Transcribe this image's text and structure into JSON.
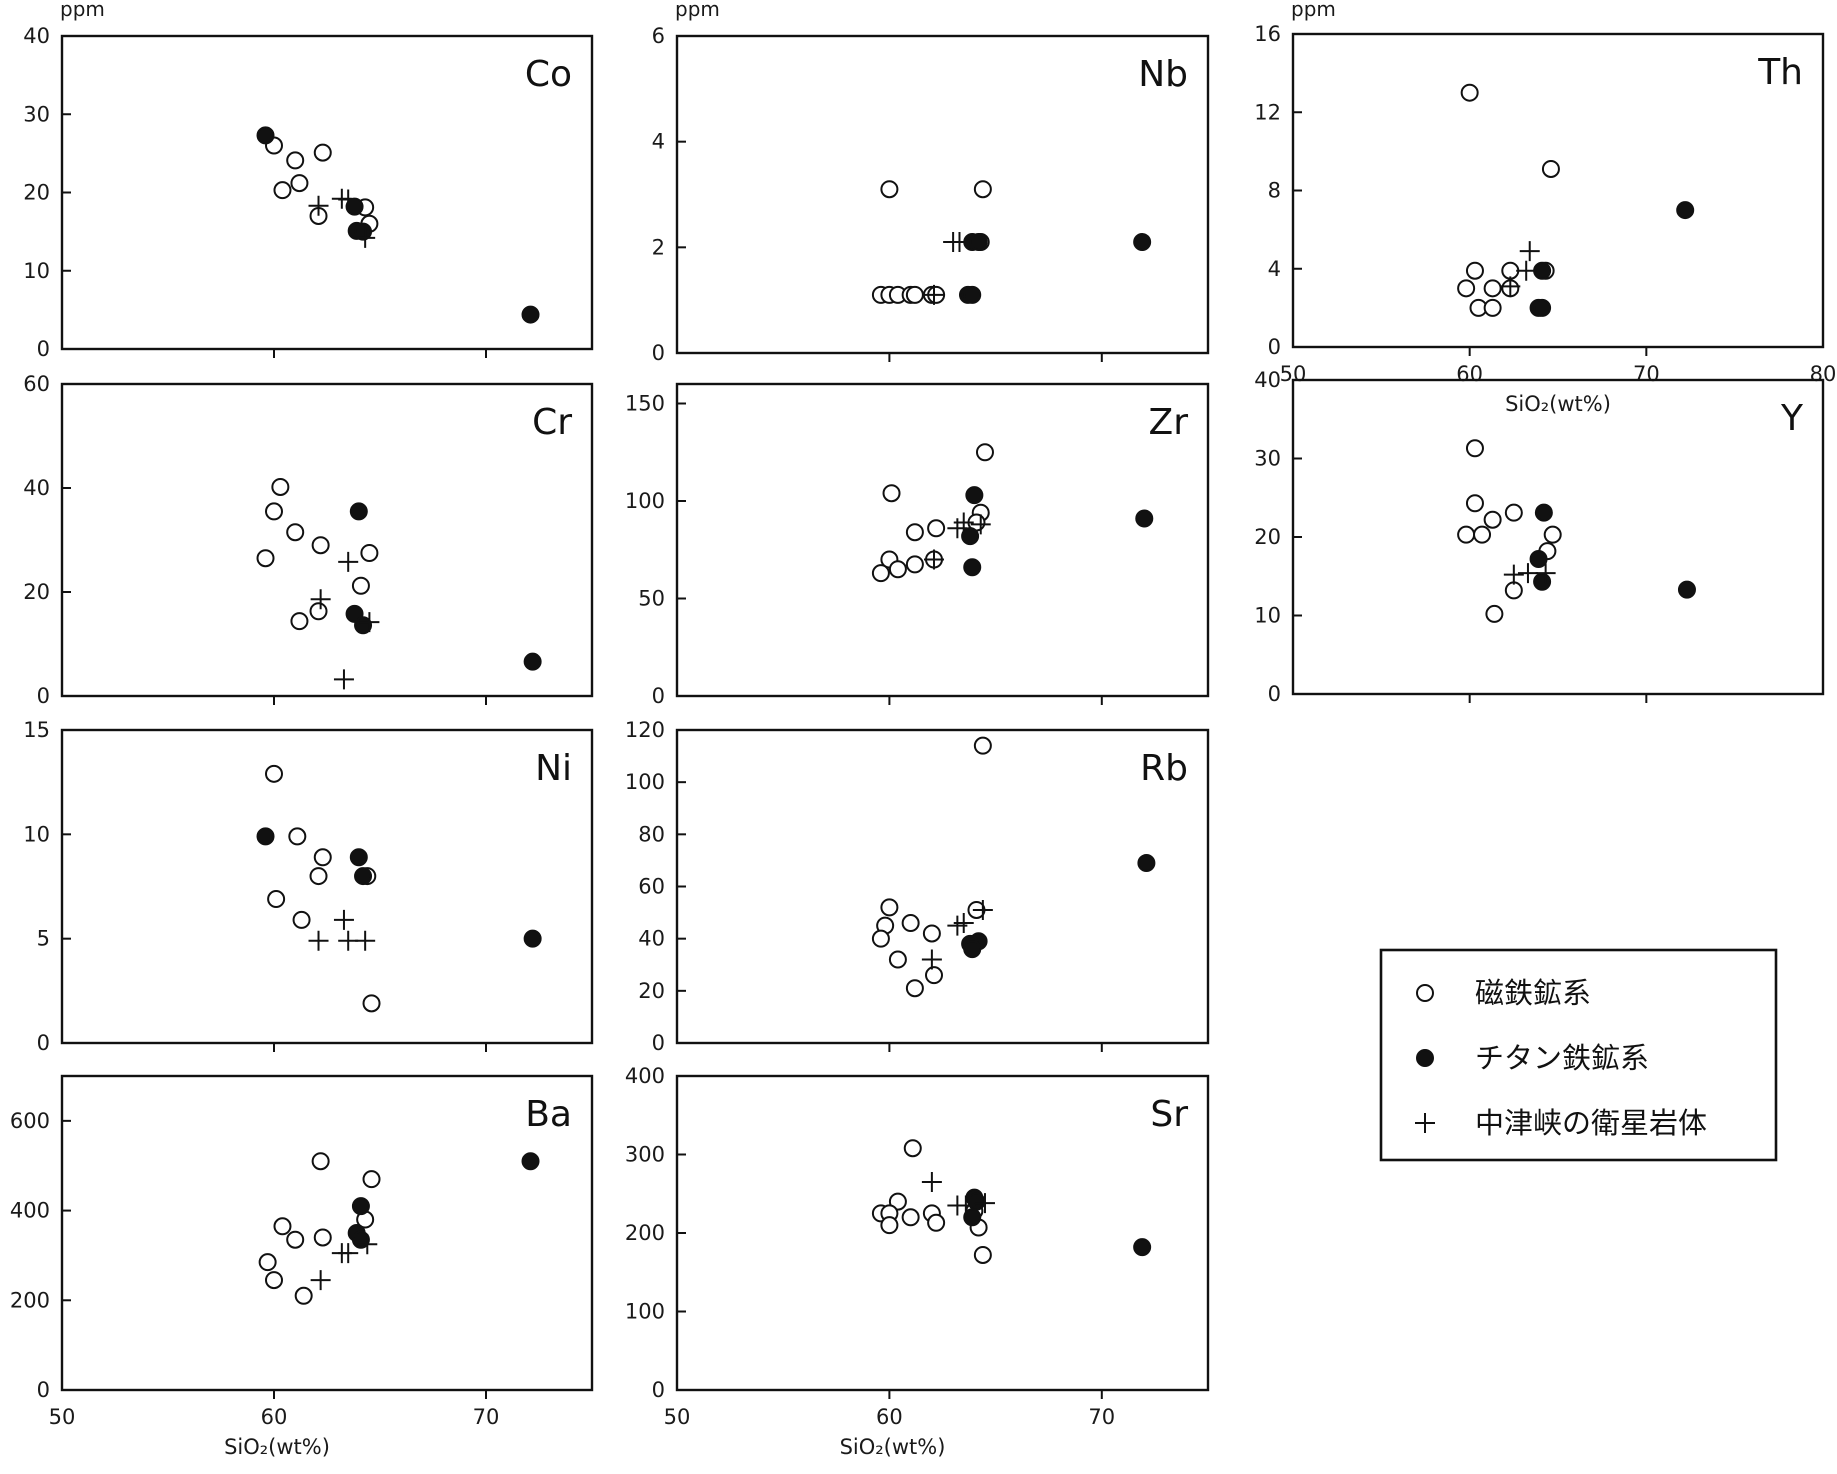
{
  "chart_data": [
    {
      "type": "scatter",
      "element": "Co",
      "unit": "ppm",
      "xlabel": "",
      "ylim": [
        0,
        40
      ],
      "yticks": [
        0,
        10,
        20,
        30,
        40
      ],
      "xlim": [
        50,
        75
      ],
      "xticks": [
        60,
        70
      ],
      "xtick_labels": [],
      "series": [
        {
          "name": "磁鉄鉱系",
          "points": [
            [
              60,
              26
            ],
            [
              60.4,
              20.3
            ],
            [
              61,
              24.1
            ],
            [
              61.2,
              21.2
            ],
            [
              62.1,
              17
            ],
            [
              62.3,
              25.1
            ],
            [
              64.3,
              18.1
            ],
            [
              64.5,
              16
            ]
          ]
        },
        {
          "name": "チタン鉄鉱系",
          "points": [
            [
              59.6,
              27.3
            ],
            [
              63.8,
              18.2
            ],
            [
              63.9,
              15.1
            ],
            [
              64.2,
              15
            ],
            [
              72.1,
              4.4
            ]
          ]
        },
        {
          "name": "中津峡の衛星岩体",
          "points": [
            [
              62.1,
              18.3
            ],
            [
              63.2,
              19.2
            ],
            [
              63.5,
              19.1
            ],
            [
              64.3,
              14.2
            ]
          ]
        }
      ]
    },
    {
      "type": "scatter",
      "element": "Nb",
      "unit": "ppm",
      "xlabel": "",
      "ylim": [
        0,
        6
      ],
      "yticks": [
        0,
        2,
        4,
        6
      ],
      "xlim": [
        50,
        75
      ],
      "xticks": [
        60,
        70
      ],
      "xtick_labels": [],
      "series": [
        {
          "name": "磁鉄鉱系",
          "points": [
            [
              59.6,
              1.1
            ],
            [
              60,
              1.1
            ],
            [
              60.4,
              1.1
            ],
            [
              61,
              1.1
            ],
            [
              61.2,
              1.1
            ],
            [
              62,
              1.1
            ],
            [
              62.2,
              1.1
            ],
            [
              60,
              3.1
            ],
            [
              64.4,
              3.1
            ],
            [
              64.3,
              2.1
            ]
          ]
        },
        {
          "name": "チタン鉄鉱系",
          "points": [
            [
              63.7,
              1.1
            ],
            [
              63.9,
              1.1
            ],
            [
              63.9,
              2.1
            ],
            [
              64.2,
              2.1
            ],
            [
              71.9,
              2.1
            ]
          ]
        },
        {
          "name": "中津峡の衛星岩体",
          "points": [
            [
              62.1,
              1.1
            ],
            [
              63,
              2.1
            ],
            [
              63.3,
              2.1
            ]
          ]
        }
      ]
    },
    {
      "type": "scatter",
      "element": "Th",
      "unit": "ppm",
      "xlabel": "SiO₂(wt%)",
      "ylim": [
        0,
        16
      ],
      "yticks": [
        0,
        4,
        8,
        12,
        16
      ],
      "ytick_labels": [
        "0",
        "4",
        "8",
        "12",
        "16"
      ],
      "xlim": [
        50,
        80
      ],
      "xticks": [
        50,
        60,
        70,
        80
      ],
      "xtick_labels": [
        "50",
        "60",
        "70",
        "80"
      ],
      "series": [
        {
          "name": "磁鉄鉱系",
          "points": [
            [
              60,
              13
            ],
            [
              64.6,
              9.1
            ],
            [
              60.3,
              3.9
            ],
            [
              59.8,
              3
            ],
            [
              61.3,
              3
            ],
            [
              60.5,
              2
            ],
            [
              61.3,
              2
            ],
            [
              62.3,
              3.9
            ],
            [
              62.3,
              3
            ],
            [
              64.3,
              3.9
            ]
          ]
        },
        {
          "name": "チタン鉄鉱系",
          "points": [
            [
              72.2,
              7
            ],
            [
              64.1,
              3.9
            ],
            [
              63.9,
              2
            ],
            [
              64.1,
              2
            ]
          ]
        },
        {
          "name": "中津峡の衛星岩体",
          "points": [
            [
              63.4,
              4.9
            ],
            [
              63.2,
              3.9
            ],
            [
              62.3,
              3.1
            ]
          ]
        }
      ]
    },
    {
      "type": "scatter",
      "element": "Cr",
      "unit": "",
      "xlabel": "",
      "ylim": [
        0,
        60
      ],
      "yticks": [
        0,
        20,
        40,
        60
      ],
      "xlim": [
        50,
        75
      ],
      "xticks": [
        60,
        70
      ],
      "xtick_labels": [],
      "series": [
        {
          "name": "磁鉄鉱系",
          "points": [
            [
              60.3,
              40.2
            ],
            [
              60,
              35.5
            ],
            [
              61,
              31.5
            ],
            [
              62.2,
              29
            ],
            [
              59.6,
              26.5
            ],
            [
              64.5,
              27.5
            ],
            [
              64.1,
              21.2
            ],
            [
              62.1,
              16.3
            ],
            [
              61.2,
              14.4
            ]
          ]
        },
        {
          "name": "チタン鉄鉱系",
          "points": [
            [
              64,
              35.5
            ],
            [
              63.8,
              15.8
            ],
            [
              64.2,
              13.6
            ],
            [
              72.2,
              6.6
            ]
          ]
        },
        {
          "name": "中津峡の衛星岩体",
          "points": [
            [
              63.5,
              25.8
            ],
            [
              62.2,
              18.6
            ],
            [
              64.5,
              14.2
            ],
            [
              63.3,
              3.2
            ]
          ]
        }
      ]
    },
    {
      "type": "scatter",
      "element": "Zr",
      "unit": "",
      "xlabel": "",
      "ylim": [
        0,
        160
      ],
      "yticks": [
        0,
        50,
        100,
        150
      ],
      "xlim": [
        50,
        75
      ],
      "xticks": [
        60,
        70
      ],
      "xtick_labels": [],
      "series": [
        {
          "name": "磁鉄鉱系",
          "points": [
            [
              64.5,
              125
            ],
            [
              60.1,
              104
            ],
            [
              64.3,
              94
            ],
            [
              62.2,
              86
            ],
            [
              61.2,
              84
            ],
            [
              60,
              70
            ],
            [
              61.2,
              67.5
            ],
            [
              60.4,
              65
            ],
            [
              59.6,
              63
            ],
            [
              62.1,
              70
            ],
            [
              64.1,
              89
            ]
          ]
        },
        {
          "name": "チタン鉄鉱系",
          "points": [
            [
              64,
              103
            ],
            [
              63.8,
              82
            ],
            [
              63.9,
              66
            ],
            [
              72,
              91
            ]
          ]
        },
        {
          "name": "中津峡の衛星岩体",
          "points": [
            [
              63.2,
              86
            ],
            [
              63.5,
              89
            ],
            [
              64.3,
              88
            ],
            [
              62.1,
              70
            ]
          ]
        }
      ]
    },
    {
      "type": "scatter",
      "element": "Y",
      "unit": "",
      "xlabel": "",
      "ylim": [
        0,
        40
      ],
      "yticks": [
        0,
        10,
        20,
        30,
        40
      ],
      "xlim": [
        50,
        80
      ],
      "xticks": [
        50,
        60,
        70,
        80
      ],
      "xtick_labels": [],
      "series": [
        {
          "name": "磁鉄鉱系",
          "points": [
            [
              60.3,
              31.3
            ],
            [
              60.3,
              24.3
            ],
            [
              61.3,
              22.2
            ],
            [
              62.5,
              23.1
            ],
            [
              59.8,
              20.3
            ],
            [
              60.7,
              20.3
            ],
            [
              64.7,
              20.3
            ],
            [
              64.4,
              18.2
            ],
            [
              62.5,
              13.2
            ],
            [
              61.4,
              10.2
            ]
          ]
        },
        {
          "name": "チタン鉄鉱系",
          "points": [
            [
              64.2,
              23.1
            ],
            [
              63.9,
              17.2
            ],
            [
              64.1,
              14.3
            ],
            [
              72.3,
              13.3
            ]
          ]
        },
        {
          "name": "中津峡の衛星岩体",
          "points": [
            [
              62.5,
              15.2
            ],
            [
              63.3,
              15.4
            ],
            [
              64.3,
              15.4
            ]
          ]
        }
      ]
    },
    {
      "type": "scatter",
      "element": "Ni",
      "unit": "",
      "xlabel": "",
      "ylim": [
        0,
        15
      ],
      "yticks": [
        0,
        5,
        10,
        15
      ],
      "xlim": [
        50,
        75
      ],
      "xticks": [
        60,
        70
      ],
      "xtick_labels": [],
      "series": [
        {
          "name": "磁鉄鉱系",
          "points": [
            [
              60,
              12.9
            ],
            [
              61.1,
              9.9
            ],
            [
              62.3,
              8.9
            ],
            [
              62.1,
              8
            ],
            [
              64.4,
              8
            ],
            [
              60.1,
              6.9
            ],
            [
              61.3,
              5.9
            ],
            [
              64.6,
              1.9
            ]
          ]
        },
        {
          "name": "チタン鉄鉱系",
          "points": [
            [
              59.6,
              9.9
            ],
            [
              64,
              8.9
            ],
            [
              64.2,
              8
            ],
            [
              72.2,
              5
            ]
          ]
        },
        {
          "name": "中津峡の衛星岩体",
          "points": [
            [
              63.3,
              5.9
            ],
            [
              62.1,
              4.9
            ],
            [
              63.5,
              4.9
            ],
            [
              64.3,
              4.9
            ]
          ]
        }
      ]
    },
    {
      "type": "scatter",
      "element": "Rb",
      "unit": "",
      "xlabel": "",
      "ylim": [
        0,
        120
      ],
      "yticks": [
        0,
        20,
        40,
        60,
        80,
        100,
        120
      ],
      "xlim": [
        50,
        75
      ],
      "xticks": [
        60,
        70
      ],
      "xtick_labels": [],
      "series": [
        {
          "name": "磁鉄鉱系",
          "points": [
            [
              64.4,
              114
            ],
            [
              60,
              52
            ],
            [
              61,
              46
            ],
            [
              59.8,
              45
            ],
            [
              59.6,
              40
            ],
            [
              62,
              42
            ],
            [
              60.4,
              32
            ],
            [
              62.1,
              26
            ],
            [
              61.2,
              21
            ],
            [
              64.1,
              51
            ]
          ]
        },
        {
          "name": "チタン鉄鉱系",
          "points": [
            [
              72.1,
              69
            ],
            [
              64.2,
              39
            ],
            [
              63.8,
              38
            ],
            [
              63.9,
              36
            ]
          ]
        },
        {
          "name": "中津峡の衛星岩体",
          "points": [
            [
              63.2,
              45
            ],
            [
              63.5,
              46
            ],
            [
              64.4,
              51
            ],
            [
              62,
              32
            ]
          ]
        }
      ]
    },
    {
      "type": "scatter",
      "element": "Ba",
      "unit": "",
      "xlabel": "SiO₂(wt%)",
      "ylim": [
        0,
        700
      ],
      "yticks": [
        0,
        200,
        400,
        600
      ],
      "xlim": [
        50,
        75
      ],
      "xticks": [
        50,
        60,
        70
      ],
      "xtick_labels": [
        "50",
        "60",
        "70"
      ],
      "series": [
        {
          "name": "磁鉄鉱系",
          "points": [
            [
              62.2,
              510
            ],
            [
              64.6,
              470
            ],
            [
              64.3,
              380
            ],
            [
              60.4,
              365
            ],
            [
              61,
              335
            ],
            [
              62.3,
              340
            ],
            [
              59.7,
              285
            ],
            [
              60,
              245
            ],
            [
              61.4,
              210
            ]
          ]
        },
        {
          "name": "チタン鉄鉱系",
          "points": [
            [
              72.1,
              510
            ],
            [
              64.1,
              410
            ],
            [
              63.9,
              350
            ],
            [
              64.1,
              335
            ]
          ]
        },
        {
          "name": "中津峡の衛星岩体",
          "points": [
            [
              62.2,
              245
            ],
            [
              63.2,
              305
            ],
            [
              63.5,
              305
            ],
            [
              64.4,
              325
            ]
          ]
        }
      ]
    },
    {
      "type": "scatter",
      "element": "Sr",
      "unit": "",
      "xlabel": "SiO₂(wt%)",
      "ylim": [
        0,
        400
      ],
      "yticks": [
        0,
        100,
        200,
        300,
        400
      ],
      "xlim": [
        50,
        75
      ],
      "xticks": [
        50,
        60,
        70
      ],
      "xtick_labels": [
        "50",
        "60",
        "70"
      ],
      "series": [
        {
          "name": "磁鉄鉱系",
          "points": [
            [
              61.1,
              308
            ],
            [
              60.4,
              240
            ],
            [
              59.6,
              225
            ],
            [
              60,
              225
            ],
            [
              61,
              220
            ],
            [
              62,
              225
            ],
            [
              62.2,
              213
            ],
            [
              60,
              210
            ],
            [
              64.2,
              207
            ],
            [
              64.4,
              172
            ],
            [
              64,
              228
            ]
          ]
        },
        {
          "name": "チタン鉄鉱系",
          "points": [
            [
              64,
              245
            ],
            [
              64.1,
              240
            ],
            [
              63.9,
              220
            ],
            [
              71.9,
              182
            ]
          ]
        },
        {
          "name": "中津峡の衛星岩体",
          "points": [
            [
              62,
              265
            ],
            [
              63.2,
              235
            ],
            [
              63.6,
              235
            ],
            [
              64.5,
              238
            ]
          ]
        }
      ]
    }
  ],
  "legend": {
    "items": [
      {
        "label": "磁鉄鉱系",
        "marker": "open-circle"
      },
      {
        "label": "チタン鉄鉱系",
        "marker": "filled-circle"
      },
      {
        "label": "中津峡の衛星岩体",
        "marker": "plus"
      }
    ]
  }
}
